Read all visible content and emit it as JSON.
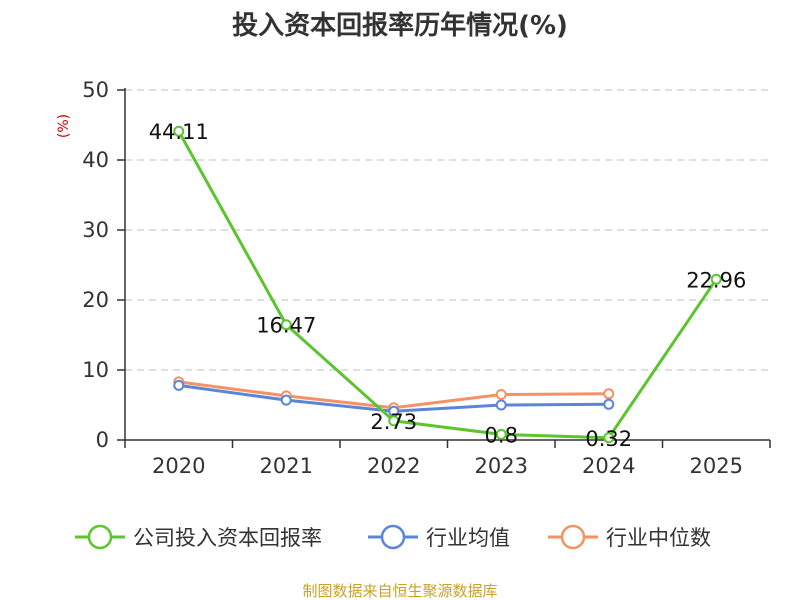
{
  "chart_data": {
    "type": "line",
    "title": "投入资本回报率历年情况(%)",
    "ylabel": "(%)",
    "ylim": [
      0,
      50
    ],
    "yticks": [
      0,
      10,
      20,
      30,
      40,
      50
    ],
    "categories": [
      "2020",
      "2021",
      "2022",
      "2023",
      "2024",
      "2025"
    ],
    "grid": true,
    "legend_position": "bottom",
    "series": [
      {
        "name": "公司投入资本回报率",
        "color": "#5bc42e",
        "values": [
          44.11,
          16.47,
          2.73,
          0.8,
          0.32,
          22.96
        ],
        "labels": [
          "44.11",
          "16.47",
          "2.73",
          "0.8",
          "0.32",
          "22.96"
        ]
      },
      {
        "name": "行业均值",
        "color": "#5b85d9",
        "values": [
          7.8,
          5.7,
          4.1,
          5.0,
          5.1,
          null
        ]
      },
      {
        "name": "行业中位数",
        "color": "#f39265",
        "values": [
          8.3,
          6.3,
          4.6,
          6.5,
          6.6,
          null
        ]
      }
    ],
    "source": "制图数据来自恒生聚源数据库",
    "colors": {
      "axis": "#333333",
      "grid": "#cccccc",
      "ylabel": "#d00000",
      "source": "#c9a227"
    }
  }
}
